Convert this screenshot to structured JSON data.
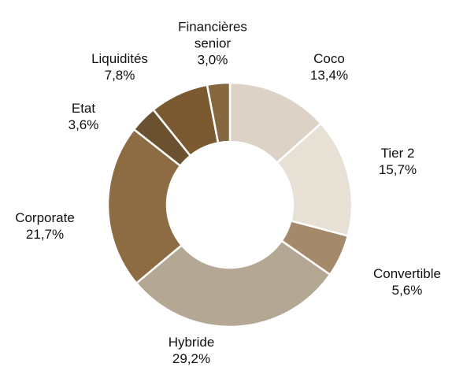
{
  "chart_data": {
    "type": "donut",
    "categories": [
      "Coco",
      "Tier 2",
      "Convertible",
      "Hybride",
      "Corporate",
      "Etat",
      "Liquidités",
      "Financières senior"
    ],
    "values": [
      13.4,
      15.7,
      5.6,
      29.2,
      21.7,
      3.6,
      7.8,
      3.0
    ],
    "value_labels": [
      "13,4%",
      "15,7%",
      "5,6%",
      "29,2%",
      "21,7%",
      "3,6%",
      "7,8%",
      "3,0%"
    ],
    "colors": [
      "#dcd3c6",
      "#e7e0d5",
      "#a48a6b",
      "#b4a793",
      "#8d6b43",
      "#6b5130",
      "#7c5a31",
      "#876740"
    ]
  }
}
